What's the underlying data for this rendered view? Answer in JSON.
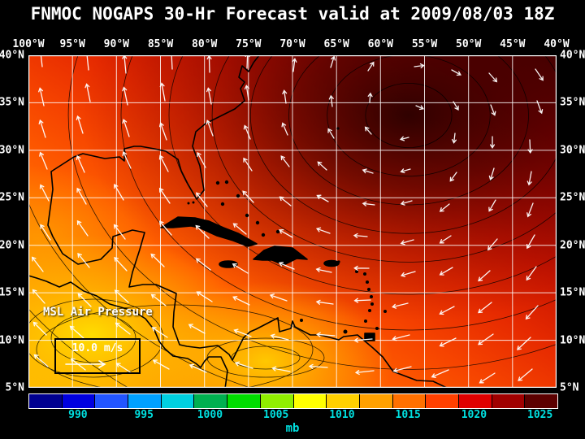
{
  "title": "FNMOC NOGAPS 30-Hr Forecast valid at 2009/08/03 18Z",
  "map": {
    "lon_labels": [
      "100°W",
      "95°W",
      "90°W",
      "85°W",
      "80°W",
      "75°W",
      "70°W",
      "65°W",
      "60°W",
      "55°W",
      "50°W",
      "45°W",
      "40°W"
    ],
    "lat_labels": [
      "40°N",
      "35°N",
      "30°N",
      "25°N",
      "20°N",
      "15°N",
      "10°N",
      "5°N"
    ],
    "field_label": "MSL Air Pressure",
    "wind_legend": "10.0 m/s"
  },
  "colorbar": {
    "unit": "mb",
    "ticks": [
      "990",
      "995",
      "1000",
      "1005",
      "1010",
      "1015",
      "1020",
      "1025"
    ],
    "segment_colors": [
      "#000090",
      "#0000e0",
      "#2255ff",
      "#00a0ff",
      "#00d0e0",
      "#00b050",
      "#00dd00",
      "#90ee00",
      "#ffff00",
      "#ffd000",
      "#ffa000",
      "#ff7000",
      "#ff4000",
      "#e00000",
      "#a00000",
      "#5c0000"
    ]
  },
  "theme": {
    "background": "#000000",
    "title_color": "#ffffff",
    "axis_label_color": "#ffffff",
    "tick_label_color": "#00e0e0",
    "grid_color": "#ffffff",
    "coast_color": "#000000",
    "arrow_color": "#ffffff",
    "field_gradient": [
      "#ffb300",
      "#ff9800",
      "#ff7a00",
      "#ff5f00",
      "#f64400",
      "#e62a00",
      "#c91500",
      "#a30800",
      "#770000",
      "#3f0000"
    ]
  },
  "chart_data": {
    "type": "heatmap",
    "title": "FNMOC NOGAPS 30-Hr Forecast valid at 2009/08/03 18Z",
    "field": "MSL Air Pressure",
    "unit": "mb",
    "colorbar_values": [
      990,
      995,
      1000,
      1005,
      1010,
      1015,
      1020,
      1025
    ],
    "lon_range_deg_w": [
      100,
      40
    ],
    "lat_range_deg_n": [
      5,
      40
    ],
    "grid_interval_deg": 5,
    "wind_reference_speed": "10.0 m/s",
    "pattern": "high pressure (dark red, ~1024 mb) centered near 55W 35N with clockwise wind circulation; lower pressure (yellow, ~1008-1010 mb) over eastern Pacific and southwest Caribbean; easterly trade winds across the tropics"
  }
}
